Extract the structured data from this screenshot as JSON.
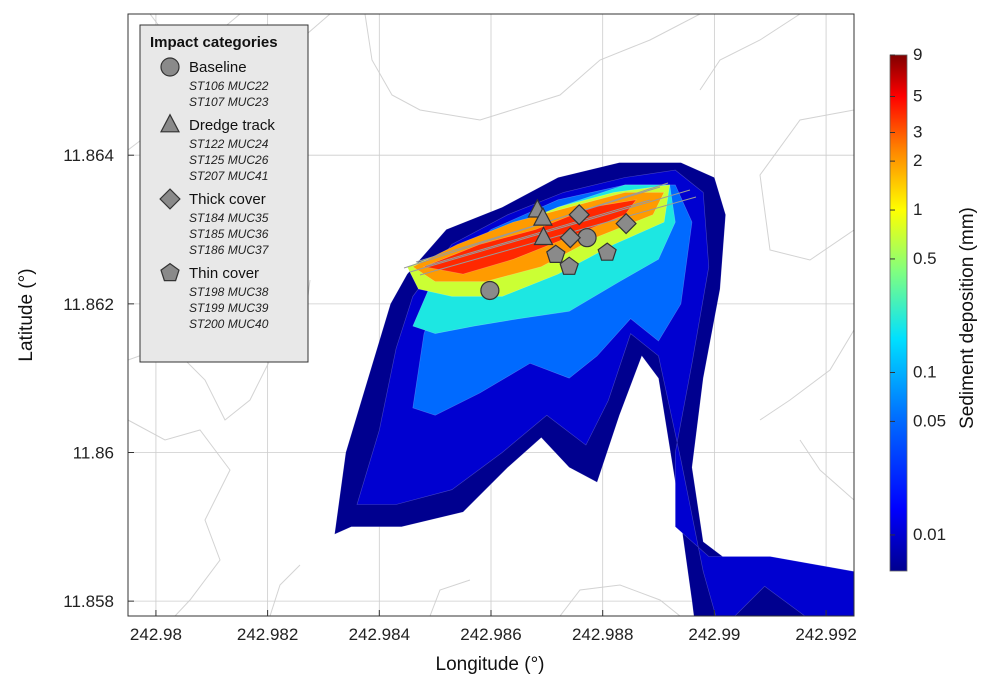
{
  "chart_data": {
    "type": "heatmap",
    "xlabel": "Longitude (°)",
    "ylabel": "Latitude (°)",
    "xlim": [
      242.9795,
      242.9925
    ],
    "ylim": [
      11.8578,
      11.8659
    ],
    "x_ticks": [
      "242.98",
      "242.982",
      "242.984",
      "242.986",
      "242.988",
      "242.99",
      "242.992"
    ],
    "x_tick_values": [
      242.98,
      242.982,
      242.984,
      242.986,
      242.988,
      242.99,
      242.992
    ],
    "y_ticks": [
      "11.858",
      "11.86",
      "11.862",
      "11.864"
    ],
    "y_tick_values": [
      11.858,
      11.86,
      11.862,
      11.864
    ],
    "grid": true,
    "colorbar": {
      "label": "Sediment deposition (mm)",
      "scale": "log",
      "range": [
        0.006,
        9
      ],
      "ticks": [
        "9",
        "5",
        "3",
        "2",
        "1",
        "0.5",
        "0.1",
        "0.05",
        "0.01"
      ],
      "tick_values": [
        9,
        5,
        3,
        2,
        1,
        0.5,
        0.1,
        0.05,
        0.01
      ]
    },
    "legend": {
      "title": "Impact categories",
      "placement": "top-left",
      "categories": [
        {
          "name": "Baseline",
          "marker": "circle",
          "stations": [
            "ST106 MUC22",
            "ST107 MUC23"
          ]
        },
        {
          "name": "Dredge track",
          "marker": "triangle",
          "stations": [
            "ST122 MUC24",
            "ST125 MUC26",
            "ST207 MUC41"
          ]
        },
        {
          "name": "Thick cover",
          "marker": "diamond",
          "stations": [
            "ST184 MUC35",
            "ST185 MUC36",
            "ST186 MUC37"
          ]
        },
        {
          "name": "Thin cover",
          "marker": "pentagon",
          "stations": [
            "ST198 MUC38",
            "ST199 MUC39",
            "ST200 MUC40"
          ]
        }
      ]
    },
    "stations": [
      {
        "category": "Baseline",
        "x": 242.98598,
        "y": 11.86218
      },
      {
        "category": "Baseline",
        "x": 242.98772,
        "y": 11.86289
      },
      {
        "category": "Dredge track",
        "x": 242.98683,
        "y": 11.86326
      },
      {
        "category": "Dredge track",
        "x": 242.98693,
        "y": 11.86315
      },
      {
        "category": "Dredge track",
        "x": 242.98694,
        "y": 11.86289
      },
      {
        "category": "Thick cover",
        "x": 242.98742,
        "y": 11.86289
      },
      {
        "category": "Thick cover",
        "x": 242.98758,
        "y": 11.8632
      },
      {
        "category": "Thick cover",
        "x": 242.98842,
        "y": 11.86308
      },
      {
        "category": "Thin cover",
        "x": 242.98716,
        "y": 11.86266
      },
      {
        "category": "Thin cover",
        "x": 242.9874,
        "y": 11.8625
      },
      {
        "category": "Thin cover",
        "x": 242.98808,
        "y": 11.86269
      }
    ],
    "deposition_contours": [
      {
        "min_mm": 0.006,
        "points": [
          [
            242.9832,
            11.8589
          ],
          [
            242.9834,
            11.86
          ],
          [
            242.9838,
            11.861
          ],
          [
            242.9842,
            11.862
          ],
          [
            242.9845,
            11.8624
          ],
          [
            242.9852,
            11.863
          ],
          [
            242.9862,
            11.8633
          ],
          [
            242.9872,
            11.8637
          ],
          [
            242.9883,
            11.8639
          ],
          [
            242.9894,
            11.8639
          ],
          [
            242.99,
            11.8637
          ],
          [
            242.9902,
            11.8632
          ],
          [
            242.9901,
            11.8622
          ],
          [
            242.9898,
            11.861
          ],
          [
            242.9896,
            11.8598
          ],
          [
            242.9898,
            11.8588
          ],
          [
            242.9905,
            11.8584
          ],
          [
            242.9915,
            11.8584
          ],
          [
            242.9925,
            11.8581
          ],
          [
            242.9925,
            11.857
          ],
          [
            242.9918,
            11.857
          ],
          [
            242.9914,
            11.8576
          ],
          [
            242.9908,
            11.8578
          ],
          [
            242.9905,
            11.8568
          ],
          [
            242.9898,
            11.8568
          ],
          [
            242.9896,
            11.858
          ],
          [
            242.9893,
            11.8596
          ],
          [
            242.989,
            11.861
          ],
          [
            242.9887,
            11.8613
          ],
          [
            242.9883,
            11.8605
          ],
          [
            242.9879,
            11.8596
          ],
          [
            242.9874,
            11.8598
          ],
          [
            242.9869,
            11.8602
          ],
          [
            242.9863,
            11.8598
          ],
          [
            242.9855,
            11.8592
          ],
          [
            242.9844,
            11.859
          ],
          [
            242.9835,
            11.859
          ],
          [
            242.9832,
            11.8589
          ]
        ]
      },
      {
        "min_mm": 0.01,
        "points": [
          [
            242.9836,
            11.8593
          ],
          [
            242.984,
            11.8603
          ],
          [
            242.9843,
            11.8614
          ],
          [
            242.9846,
            11.8621
          ],
          [
            242.9853,
            11.8628
          ],
          [
            242.9863,
            11.8632
          ],
          [
            242.9873,
            11.8635
          ],
          [
            242.9884,
            11.8637
          ],
          [
            242.9893,
            11.8638
          ],
          [
            242.9898,
            11.8635
          ],
          [
            242.9899,
            11.8625
          ],
          [
            242.9896,
            11.8612
          ],
          [
            242.9893,
            11.86
          ],
          [
            242.9893,
            11.859
          ],
          [
            242.9899,
            11.8586
          ],
          [
            242.991,
            11.8586
          ],
          [
            242.9925,
            11.8584
          ],
          [
            242.9925,
            11.8576
          ],
          [
            242.9918,
            11.8577
          ],
          [
            242.9909,
            11.8582
          ],
          [
            242.9901,
            11.8576
          ],
          [
            242.9898,
            11.8584
          ],
          [
            242.9894,
            11.8599
          ],
          [
            242.989,
            11.8613
          ],
          [
            242.9885,
            11.8616
          ],
          [
            242.9881,
            11.8607
          ],
          [
            242.9877,
            11.8601
          ],
          [
            242.987,
            11.8605
          ],
          [
            242.9862,
            11.86
          ],
          [
            242.9853,
            11.8595
          ],
          [
            242.9843,
            11.8593
          ],
          [
            242.9836,
            11.8593
          ]
        ]
      },
      {
        "min_mm": 0.05,
        "points": [
          [
            242.9846,
            11.8606
          ],
          [
            242.9848,
            11.8616
          ],
          [
            242.9852,
            11.8624
          ],
          [
            242.986,
            11.863
          ],
          [
            242.9872,
            11.8634
          ],
          [
            242.9884,
            11.8636
          ],
          [
            242.9893,
            11.8636
          ],
          [
            242.9896,
            11.8631
          ],
          [
            242.9894,
            11.862
          ],
          [
            242.989,
            11.8615
          ],
          [
            242.9885,
            11.8618
          ],
          [
            242.9879,
            11.8613
          ],
          [
            242.9874,
            11.861
          ],
          [
            242.9867,
            11.8612
          ],
          [
            242.9858,
            11.8608
          ],
          [
            242.985,
            11.8605
          ],
          [
            242.9846,
            11.8606
          ]
        ]
      },
      {
        "min_mm": 0.2,
        "points": [
          [
            242.9846,
            11.8617
          ],
          [
            242.985,
            11.8624
          ],
          [
            242.986,
            11.8629
          ],
          [
            242.9872,
            11.8633
          ],
          [
            242.9884,
            11.8636
          ],
          [
            242.9892,
            11.8636
          ],
          [
            242.9893,
            11.8631
          ],
          [
            242.989,
            11.8626
          ],
          [
            242.9883,
            11.8623
          ],
          [
            242.9874,
            11.8619
          ],
          [
            242.9865,
            11.8618
          ],
          [
            242.9857,
            11.8617
          ],
          [
            242.985,
            11.8616
          ],
          [
            242.9846,
            11.8617
          ]
        ]
      },
      {
        "min_mm": 0.7,
        "points": [
          [
            242.9845,
            11.8625
          ],
          [
            242.9852,
            11.8627
          ],
          [
            242.9862,
            11.863
          ],
          [
            242.9872,
            11.8633
          ],
          [
            242.9882,
            11.8635
          ],
          [
            242.9892,
            11.8636
          ],
          [
            242.9891,
            11.8631
          ],
          [
            242.9882,
            11.8628
          ],
          [
            242.9872,
            11.8624
          ],
          [
            242.9862,
            11.8621
          ],
          [
            242.9853,
            11.8621
          ],
          [
            242.9847,
            11.8622
          ],
          [
            242.9845,
            11.8625
          ]
        ]
      },
      {
        "min_mm": 2,
        "points": [
          [
            242.9846,
            11.8625
          ],
          [
            242.9854,
            11.8628
          ],
          [
            242.9864,
            11.8631
          ],
          [
            242.9874,
            11.8633
          ],
          [
            242.9884,
            11.8635
          ],
          [
            242.9891,
            11.8635
          ],
          [
            242.9889,
            11.8632
          ],
          [
            242.9879,
            11.8629
          ],
          [
            242.9869,
            11.8625
          ],
          [
            242.9859,
            11.8623
          ],
          [
            242.985,
            11.8623
          ],
          [
            242.9846,
            11.8625
          ]
        ]
      },
      {
        "min_mm": 4,
        "points": [
          [
            242.9848,
            11.8625
          ],
          [
            242.9858,
            11.8628
          ],
          [
            242.9868,
            11.863
          ],
          [
            242.9878,
            11.8633
          ],
          [
            242.9886,
            11.8634
          ],
          [
            242.9884,
            11.8632
          ],
          [
            242.9874,
            11.8629
          ],
          [
            242.9864,
            11.8626
          ],
          [
            242.9855,
            11.8624
          ],
          [
            242.9848,
            11.8625
          ]
        ]
      }
    ]
  }
}
